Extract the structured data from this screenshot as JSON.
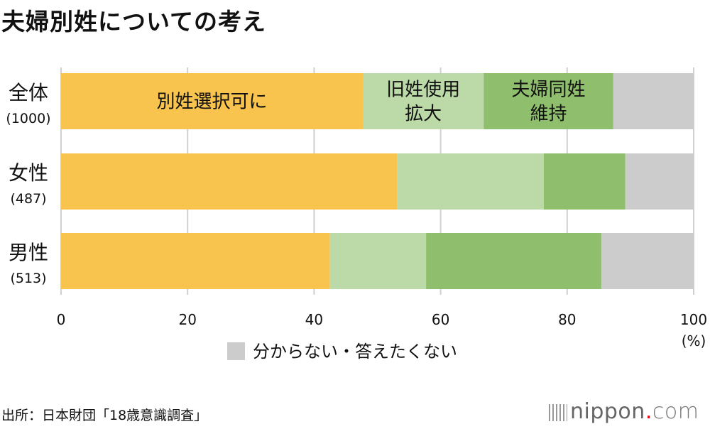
{
  "title": "夫婦別姓についての考え",
  "chart_data": {
    "type": "bar",
    "orientation": "horizontal",
    "stacked": true,
    "categories": [
      {
        "label": "全体",
        "n": "(1000)"
      },
      {
        "label": "女性",
        "n": "(487)"
      },
      {
        "label": "男性",
        "n": "(513)"
      }
    ],
    "series": [
      {
        "name": "別姓選択可に",
        "color": "#f8c44d",
        "values": [
          47.7,
          53.1,
          42.5
        ]
      },
      {
        "name": "旧姓使用\n拡大",
        "color": "#bcd9a8",
        "values": [
          19.1,
          23.2,
          15.2
        ]
      },
      {
        "name": "夫婦同姓\n維持",
        "color": "#8fbf6d",
        "values": [
          20.5,
          12.9,
          27.7
        ]
      },
      {
        "name": "分からない・答えたくない",
        "color": "#cccccc",
        "values": [
          12.7,
          10.8,
          14.6
        ]
      }
    ],
    "xlim": [
      0,
      100
    ],
    "xticks": [
      "0",
      "20",
      "40",
      "60",
      "80",
      "100"
    ],
    "xunit": "(%)",
    "grid": true,
    "legend": "bottom"
  },
  "source": "出所：日本財団「18歳意識調査」",
  "logo": {
    "text": "nippon",
    "dot": ".",
    "suffix": "com"
  }
}
